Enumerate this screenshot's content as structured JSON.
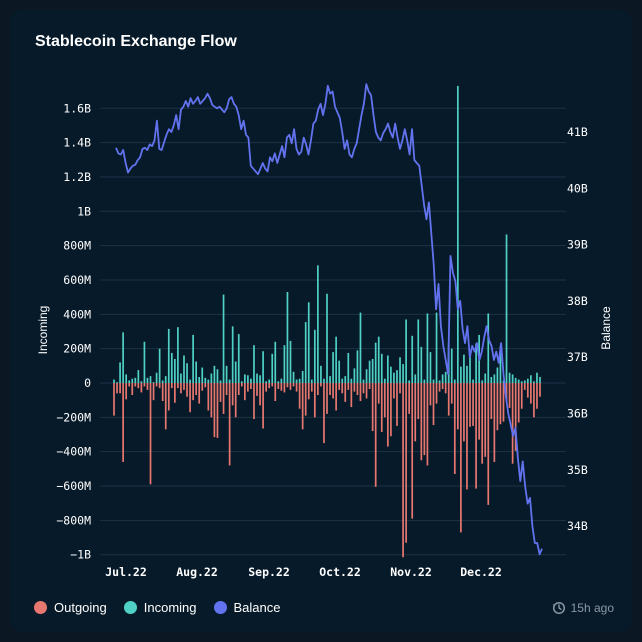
{
  "title": "Stablecoin Exchange Flow",
  "updated": "15h ago",
  "icons": {
    "updated": "history-clock-icon"
  },
  "legend": [
    {
      "label": "Outgoing",
      "color": "#e8776f"
    },
    {
      "label": "Incoming",
      "color": "#4fd1c5"
    },
    {
      "label": "Balance",
      "color": "#6373f0"
    }
  ],
  "chart_data": {
    "type": "bar+line",
    "title": "Stablecoin Exchange Flow",
    "x_ticks": [
      "Jul.22",
      "Aug.22",
      "Sep.22",
      "Oct.22",
      "Nov.22",
      "Dec.22"
    ],
    "y_left": {
      "label": "Incoming",
      "range": [
        -1000000000,
        1600000000
      ],
      "ticks": [
        -1000000000,
        -800000000,
        -600000000,
        -400000000,
        -200000000,
        0,
        200000000,
        400000000,
        600000000,
        800000000,
        1000000000,
        1200000000,
        1400000000,
        1600000000
      ],
      "tick_labels": [
        "−1B",
        "−800M",
        "−600M",
        "−400M",
        "−200M",
        "0",
        "200M",
        "400M",
        "600M",
        "800M",
        "1B",
        "1.2B",
        "1.4B",
        "1.6B"
      ]
    },
    "y_right": {
      "label": "Balance",
      "range": [
        33500000000,
        41500000000
      ],
      "ticks": [
        34000000000,
        35000000000,
        36000000000,
        37000000000,
        38000000000,
        39000000000,
        40000000000,
        41000000000
      ],
      "tick_labels": [
        "34B",
        "35B",
        "36B",
        "37B",
        "38B",
        "39B",
        "40B",
        "41B"
      ]
    },
    "grid": "horizontal",
    "incoming": [
      20,
      5,
      120,
      295,
      50,
      15,
      25,
      30,
      75,
      10,
      240,
      30,
      40,
      5,
      60,
      200,
      15,
      40,
      315,
      175,
      140,
      325,
      55,
      160,
      115,
      20,
      280,
      125,
      35,
      90,
      30,
      20,
      55,
      100,
      80,
      15,
      515,
      100,
      20,
      330,
      125,
      285,
      10,
      50,
      45,
      25,
      220,
      55,
      45,
      185,
      10,
      20,
      170,
      240,
      10,
      25,
      220,
      530,
      245,
      65,
      20,
      25,
      70,
      355,
      470,
      20,
      310,
      685,
      100,
      25,
      520,
      40,
      180,
      270,
      130,
      25,
      40,
      175,
      25,
      85,
      190,
      410,
      20,
      80,
      130,
      140,
      235,
      270,
      170,
      25,
      160,
      95,
      60,
      75,
      150,
      110,
      370,
      15,
      275,
      50,
      370,
      210,
      20,
      405,
      180,
      20,
      410,
      15,
      50,
      65,
      235,
      200,
      20,
      1730,
      95,
      165,
      100,
      160,
      20,
      230,
      280,
      15,
      55,
      405,
      35,
      50,
      90,
      215,
      15,
      865,
      60,
      50,
      30,
      20,
      10,
      15,
      25,
      45,
      10,
      60,
      35
    ],
    "outgoing": [
      -190,
      -60,
      -60,
      -460,
      -95,
      -20,
      -70,
      -20,
      -30,
      -55,
      -20,
      -40,
      -590,
      -100,
      -20,
      -30,
      -105,
      -270,
      -160,
      -30,
      -115,
      -30,
      -60,
      -40,
      -80,
      -170,
      -100,
      -70,
      -120,
      -45,
      -25,
      -160,
      -200,
      -315,
      -320,
      -110,
      -180,
      -70,
      -480,
      -130,
      -200,
      -70,
      -20,
      -100,
      -50,
      -35,
      -210,
      -75,
      -130,
      -265,
      -50,
      -30,
      -20,
      -105,
      -35,
      -45,
      -55,
      -25,
      -40,
      -20,
      -50,
      -150,
      -270,
      -190,
      -95,
      -50,
      -200,
      -70,
      -20,
      -350,
      -180,
      -70,
      -90,
      -160,
      -40,
      -60,
      -110,
      -40,
      -140,
      -50,
      -70,
      -105,
      -60,
      -90,
      -35,
      -280,
      -605,
      -120,
      -285,
      -200,
      -370,
      -310,
      -90,
      -250,
      -60,
      -1015,
      -930,
      -180,
      -790,
      -340,
      -210,
      -450,
      -420,
      -480,
      -130,
      -245,
      -120,
      -50,
      -35,
      -60,
      -190,
      -120,
      -530,
      -270,
      -870,
      -340,
      -620,
      -255,
      -250,
      -615,
      -330,
      -470,
      -430,
      -710,
      -210,
      -460,
      -275,
      -240,
      -225,
      -105,
      -145,
      -470,
      -395,
      -230,
      -150,
      -40,
      -85,
      -120,
      -200,
      -150,
      -80
    ],
    "balance": [
      40.72,
      40.62,
      40.6,
      40.68,
      40.45,
      40.28,
      40.35,
      40.4,
      40.42,
      40.5,
      40.55,
      40.7,
      40.72,
      40.68,
      40.78,
      40.75,
      40.85,
      41.2,
      40.7,
      40.68,
      40.82,
      40.95,
      41.05,
      41.0,
      41.12,
      41.3,
      41.05,
      41.4,
      41.45,
      41.55,
      41.45,
      41.6,
      41.5,
      41.55,
      41.62,
      41.5,
      41.55,
      41.6,
      41.68,
      41.6,
      41.48,
      41.45,
      41.42,
      41.45,
      41.4,
      41.35,
      41.42,
      41.58,
      41.62,
      41.5,
      41.45,
      41.3,
      41.05,
      41.2,
      40.95,
      40.9,
      40.4,
      40.35,
      40.3,
      40.25,
      40.35,
      40.45,
      40.35,
      40.3,
      40.55,
      40.48,
      40.62,
      40.45,
      40.6,
      40.75,
      40.55,
      40.9,
      40.95,
      40.8,
      41.05,
      40.7,
      40.6,
      40.65,
      40.9,
      40.78,
      40.6,
      40.85,
      41.15,
      41.2,
      41.4,
      41.5,
      41.3,
      41.5,
      41.82,
      41.68,
      41.72,
      41.45,
      41.35,
      41.25,
      41.0,
      40.7,
      40.85,
      40.6,
      40.55,
      40.7,
      40.8,
      41.05,
      41.3,
      41.5,
      41.85,
      41.72,
      41.65,
      41.3,
      41.0,
      40.9,
      40.85,
      40.98,
      41.05,
      41.15,
      41.0,
      40.9,
      41.15,
      40.9,
      40.7,
      40.85,
      41.05,
      40.85,
      40.6,
      41.05,
      40.5,
      40.45,
      40.4,
      40.05,
      39.7,
      39.45,
      39.75,
      39.2,
      38.65,
      37.85,
      38.3,
      37.55,
      37.2,
      36.95,
      36.7,
      38.8,
      38.5,
      38.35,
      37.85,
      38.0,
      37.5,
      37.25,
      37.55,
      37.0,
      37.2,
      37.1,
      37.25,
      36.95,
      37.1,
      37.35,
      37.55,
      37.3,
      37.2,
      36.95,
      37.1,
      36.9,
      37.25,
      36.7,
      36.3,
      36.0,
      35.8,
      35.6,
      35.75,
      35.2,
      34.8,
      35.15,
      34.7,
      34.4,
      34.5,
      34.0,
      33.7,
      33.7,
      33.5,
      33.6
    ]
  }
}
